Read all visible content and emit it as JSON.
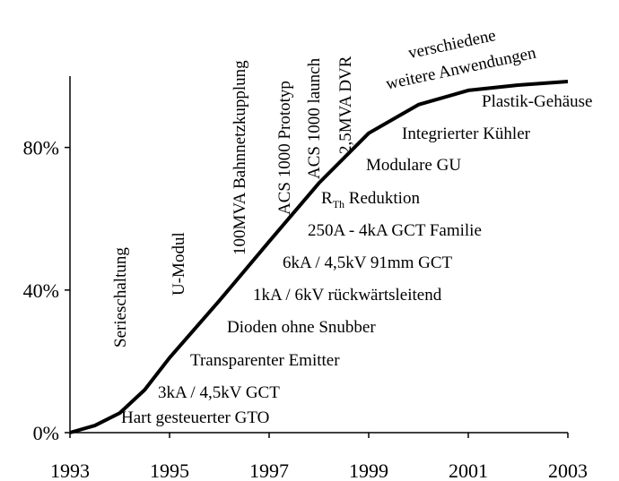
{
  "chart_data": {
    "type": "line",
    "x": [
      1993,
      1993.5,
      1994,
      1994.5,
      1995,
      1996,
      1997,
      1998,
      1999,
      2000,
      2001,
      2002,
      2003
    ],
    "series": [
      {
        "name": null,
        "color": "#000000",
        "values": [
          0,
          2,
          5.5,
          12,
          21,
          37,
          53.6,
          70,
          84,
          92,
          96,
          97.5,
          98.5
        ]
      }
    ],
    "xlim": [
      1993,
      2003
    ],
    "xticks": [
      1993,
      1995,
      1997,
      1999,
      2001,
      2003
    ],
    "ylim": [
      0,
      100
    ],
    "yticks": [
      {
        "value": 0,
        "label": "0%"
      },
      {
        "value": 40,
        "label": "40%"
      },
      {
        "value": 80,
        "label": "80%"
      }
    ],
    "grid": false,
    "annotations": {
      "vertical": [
        "Serieschaltung",
        "U-Modul",
        "100MVA Bahnnetzkupplung",
        "ACS 1000 Prototyp",
        "ACS 1000 launch",
        "2,5MVA DVR"
      ],
      "horizontal": [
        "Hart gesteuerter GTO",
        "3kA / 4,5kV GCT",
        "Transparenter Emitter",
        "Dioden ohne Snubber",
        "1kA / 6kV rückwärtsleitend",
        "6kA / 4,5kV 91mm GCT",
        "250A - 4kA GCT Familie",
        "Modulare GU",
        "Integrierter Kühler",
        "Plastik-Gehäuse"
      ],
      "rth": {
        "main": "R",
        "sub": "Th",
        "rest": " Reduktion"
      },
      "tilted": [
        "verschiedene",
        "weitere Anwendungen"
      ]
    }
  }
}
